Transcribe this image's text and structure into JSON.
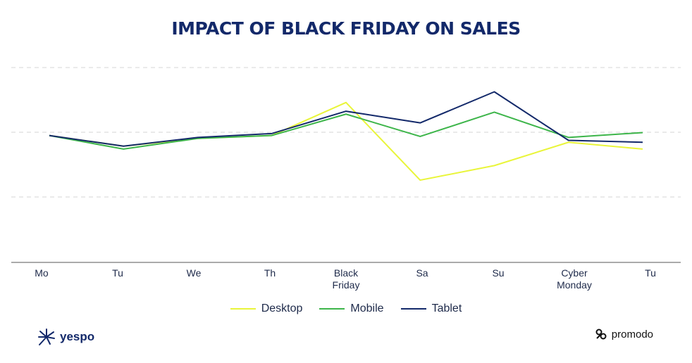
{
  "chart_data": {
    "type": "line",
    "title": "IMPACT OF BLACK FRIDAY ON SALES",
    "categories": [
      [
        "Mo"
      ],
      [
        "Tu"
      ],
      [
        "We"
      ],
      [
        "Th"
      ],
      [
        "Black",
        "Friday"
      ],
      [
        "Sa"
      ],
      [
        "Su"
      ],
      [
        "Cyber",
        "Monday"
      ],
      [
        "Tu"
      ]
    ],
    "ylim": [
      0,
      100
    ],
    "grid": true,
    "legend_position": "bottom",
    "series": [
      {
        "name": "Desktop",
        "color": "#e9f53a",
        "values": [
          65.0,
          59.5,
          63.5,
          65.0,
          82.0,
          42.0,
          49.5,
          61.5,
          58.0
        ]
      },
      {
        "name": "Mobile",
        "color": "#3db54a",
        "values": [
          65.0,
          58.0,
          63.5,
          65.0,
          76.0,
          64.5,
          77.0,
          64.0,
          66.5
        ]
      },
      {
        "name": "Tablet",
        "color": "#13296a",
        "values": [
          65.0,
          59.5,
          64.0,
          66.0,
          77.5,
          71.5,
          87.5,
          62.5,
          61.5
        ]
      }
    ]
  },
  "brands": {
    "left": "yespo",
    "right": "promodo"
  }
}
